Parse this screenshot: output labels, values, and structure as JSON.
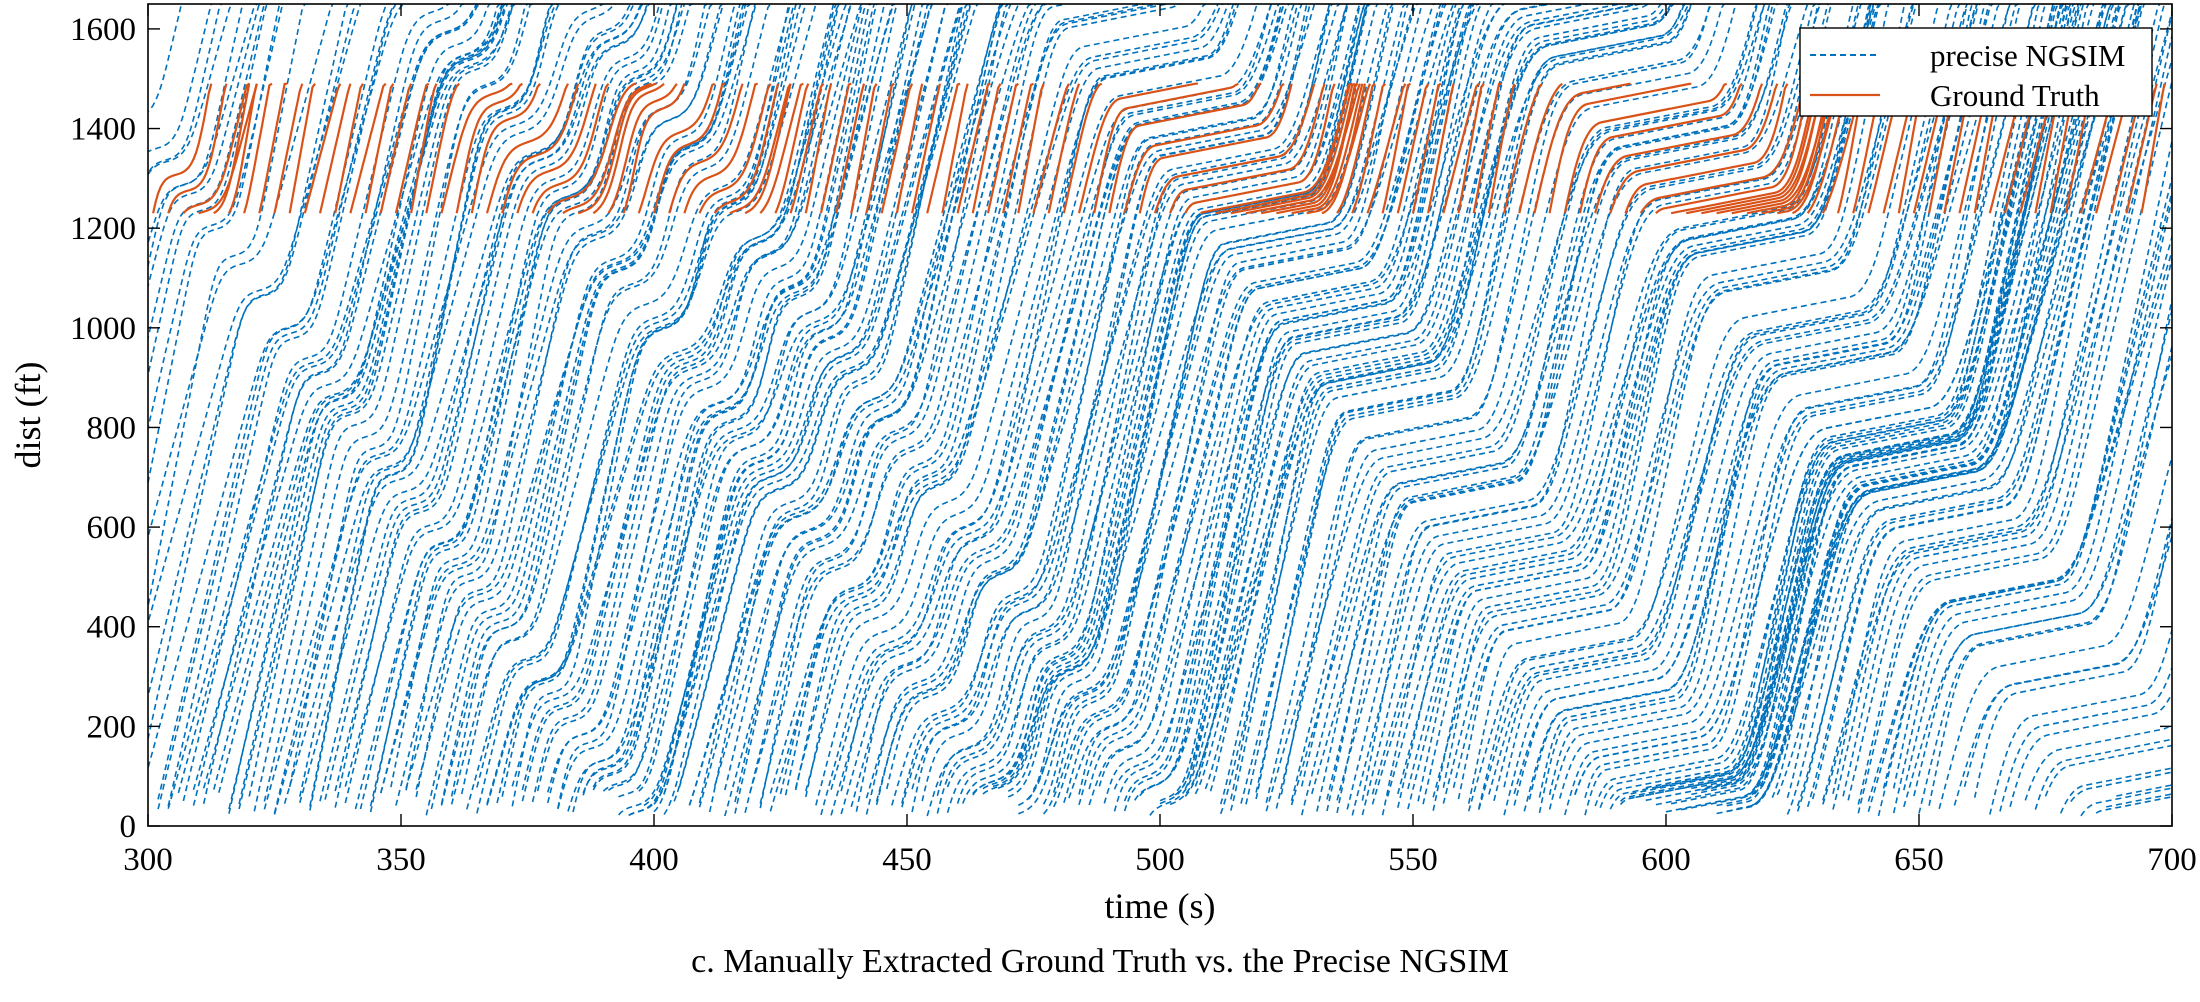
{
  "chart_data": {
    "type": "line",
    "title": "",
    "caption": "c. Manually Extracted Ground Truth vs. the Precise NGSIM",
    "xlabel": "time (s)",
    "ylabel": "dist (ft)",
    "xlim": [
      300,
      700
    ],
    "ylim": [
      0,
      1650
    ],
    "xticks": [
      300,
      350,
      400,
      450,
      500,
      550,
      600,
      650,
      700
    ],
    "yticks": [
      0,
      200,
      400,
      600,
      800,
      1000,
      1200,
      1400,
      1600
    ],
    "grid": false,
    "legend": {
      "placement": "top-right"
    },
    "series": [
      {
        "name": "precise NGSIM",
        "color": "#0072BD",
        "style": "dashed",
        "trajectory_start_times": [
          302,
          304,
          307,
          309,
          311,
          314,
          316,
          318,
          321,
          323,
          325,
          328,
          330,
          332,
          335,
          337,
          339,
          342,
          344,
          346,
          349,
          351,
          353,
          356,
          358,
          360,
          363,
          365,
          367,
          370,
          372,
          374,
          377,
          379,
          381,
          384,
          386,
          388,
          391,
          393,
          395,
          398,
          400,
          402,
          405,
          407,
          409,
          412,
          414,
          416,
          419,
          421,
          423,
          426,
          428,
          430,
          433,
          435,
          437,
          440,
          442,
          444,
          447,
          449,
          451,
          454,
          456,
          458,
          461,
          463,
          465,
          468,
          470,
          472,
          475,
          477,
          479,
          482,
          484,
          486,
          489,
          491,
          493,
          496,
          498,
          500,
          503,
          505,
          507,
          510,
          512,
          514,
          517,
          519,
          521,
          524,
          526,
          528,
          531,
          533,
          535,
          538,
          540,
          542,
          545,
          547,
          549,
          552,
          554,
          556,
          559,
          561,
          563,
          566,
          568,
          570,
          573,
          575,
          577,
          580,
          582,
          584,
          587,
          589,
          591,
          594,
          596,
          598,
          601,
          603,
          605,
          608,
          610,
          612,
          615,
          617,
          619,
          622,
          624,
          626,
          629,
          631,
          633,
          636,
          638,
          640,
          643,
          645,
          647,
          650,
          652,
          654,
          657,
          659,
          661,
          664,
          666,
          668,
          671,
          673,
          675,
          678,
          680,
          682,
          685,
          687,
          689
        ],
        "distance_range": [
          0,
          1650
        ]
      },
      {
        "name": "Ground Truth",
        "color": "#D95319",
        "style": "solid",
        "trajectory_start_times": [
          301,
          304,
          307,
          310,
          313,
          316,
          319,
          322,
          325,
          328,
          331,
          334,
          337,
          340,
          343,
          346,
          349,
          352,
          355,
          358,
          361,
          364,
          367,
          370,
          373,
          376,
          379,
          382,
          385,
          388,
          391,
          394,
          397,
          400,
          403,
          406,
          409,
          412,
          415,
          418,
          421,
          424,
          427,
          430,
          433,
          436,
          439,
          442,
          445,
          448,
          451,
          454,
          457,
          460,
          463,
          466,
          469,
          472,
          475,
          478,
          481,
          484,
          487,
          490,
          493,
          496,
          499,
          502,
          505,
          508,
          511,
          514,
          517,
          520,
          523,
          526,
          529,
          532,
          535,
          538,
          541,
          544,
          547,
          550,
          553,
          556,
          559,
          562,
          565,
          568,
          571,
          574,
          577,
          580,
          583,
          586,
          589,
          592,
          595,
          598,
          601,
          604,
          607,
          610,
          613,
          616,
          619,
          622,
          625,
          628,
          631,
          634,
          637,
          640,
          643,
          646,
          649,
          652,
          655,
          658,
          661,
          664,
          667,
          670,
          673,
          676,
          679,
          682,
          685,
          688,
          691,
          694
        ],
        "distance_range": [
          1230,
          1490
        ]
      }
    ]
  }
}
